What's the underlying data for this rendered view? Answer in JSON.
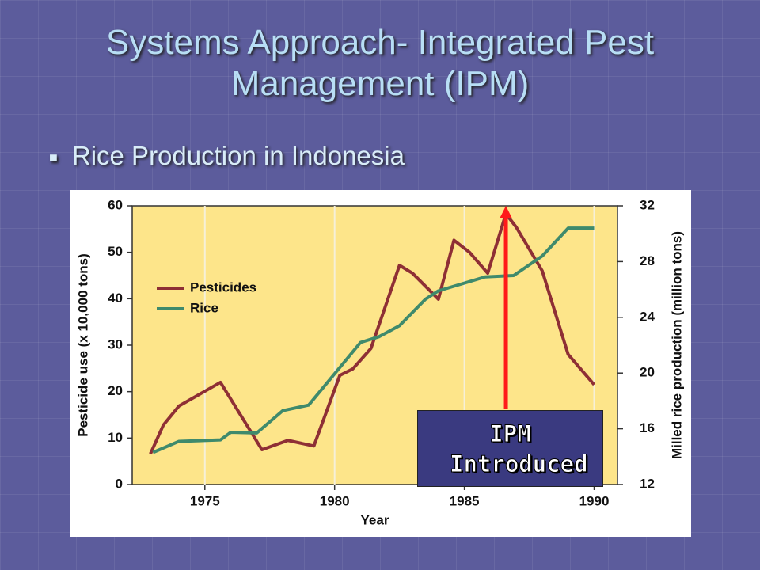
{
  "slide": {
    "title": "Systems Approach- Integrated Pest Management (IPM)",
    "bullet": "Rice Production in Indonesia"
  },
  "chart_data": {
    "type": "line",
    "x_label": "Year",
    "y_label": "Pesticide use (x 10,000 tons)",
    "y2_label": "Milled rice production (million tons)",
    "annotation": "IPM Introduced",
    "annotation_x": 1986.6,
    "xlim": [
      1972.2,
      1990.9
    ],
    "xticks": [
      1975,
      1980,
      1985,
      1990
    ],
    "ylim": [
      0,
      60
    ],
    "yticks": [
      0,
      10,
      20,
      30,
      40,
      50,
      60
    ],
    "y2lim": [
      12,
      32
    ],
    "y2ticks": [
      12,
      16,
      20,
      24,
      28,
      32
    ],
    "grid": true,
    "legend": "upper-left",
    "series": [
      {
        "name": "Pesticides",
        "color": "#8e2f35",
        "x": [
          1972.9,
          1973.4,
          1974,
          1975.6,
          1977.2,
          1978.2,
          1979.2,
          1980.2,
          1980.7,
          1981.4,
          1982.5,
          1983,
          1984,
          1984.6,
          1985.2,
          1985.9,
          1986.6,
          1987,
          1988,
          1989,
          1990
        ],
        "values": [
          6.6,
          12.8,
          16.9,
          22,
          7.5,
          9.5,
          8.3,
          23.5,
          24.9,
          29.3,
          47.2,
          45.5,
          39.9,
          52.6,
          50,
          45.5,
          58.3,
          55.4,
          46,
          28,
          21.5
        ]
      },
      {
        "name": "Rice",
        "color": "#3f8a6c",
        "axis": "y2",
        "x": [
          1973,
          1974,
          1975.6,
          1976,
          1977,
          1978,
          1979,
          1981,
          1981.7,
          1982.5,
          1983.5,
          1984,
          1985.8,
          1986.9,
          1988,
          1989,
          1990
        ],
        "values": [
          14.3,
          15.1,
          15.2,
          15.75,
          15.7,
          17.3,
          17.7,
          22.2,
          22.6,
          23.4,
          25.3,
          25.9,
          26.9,
          27,
          28.4,
          30.4,
          30.4
        ]
      }
    ]
  }
}
